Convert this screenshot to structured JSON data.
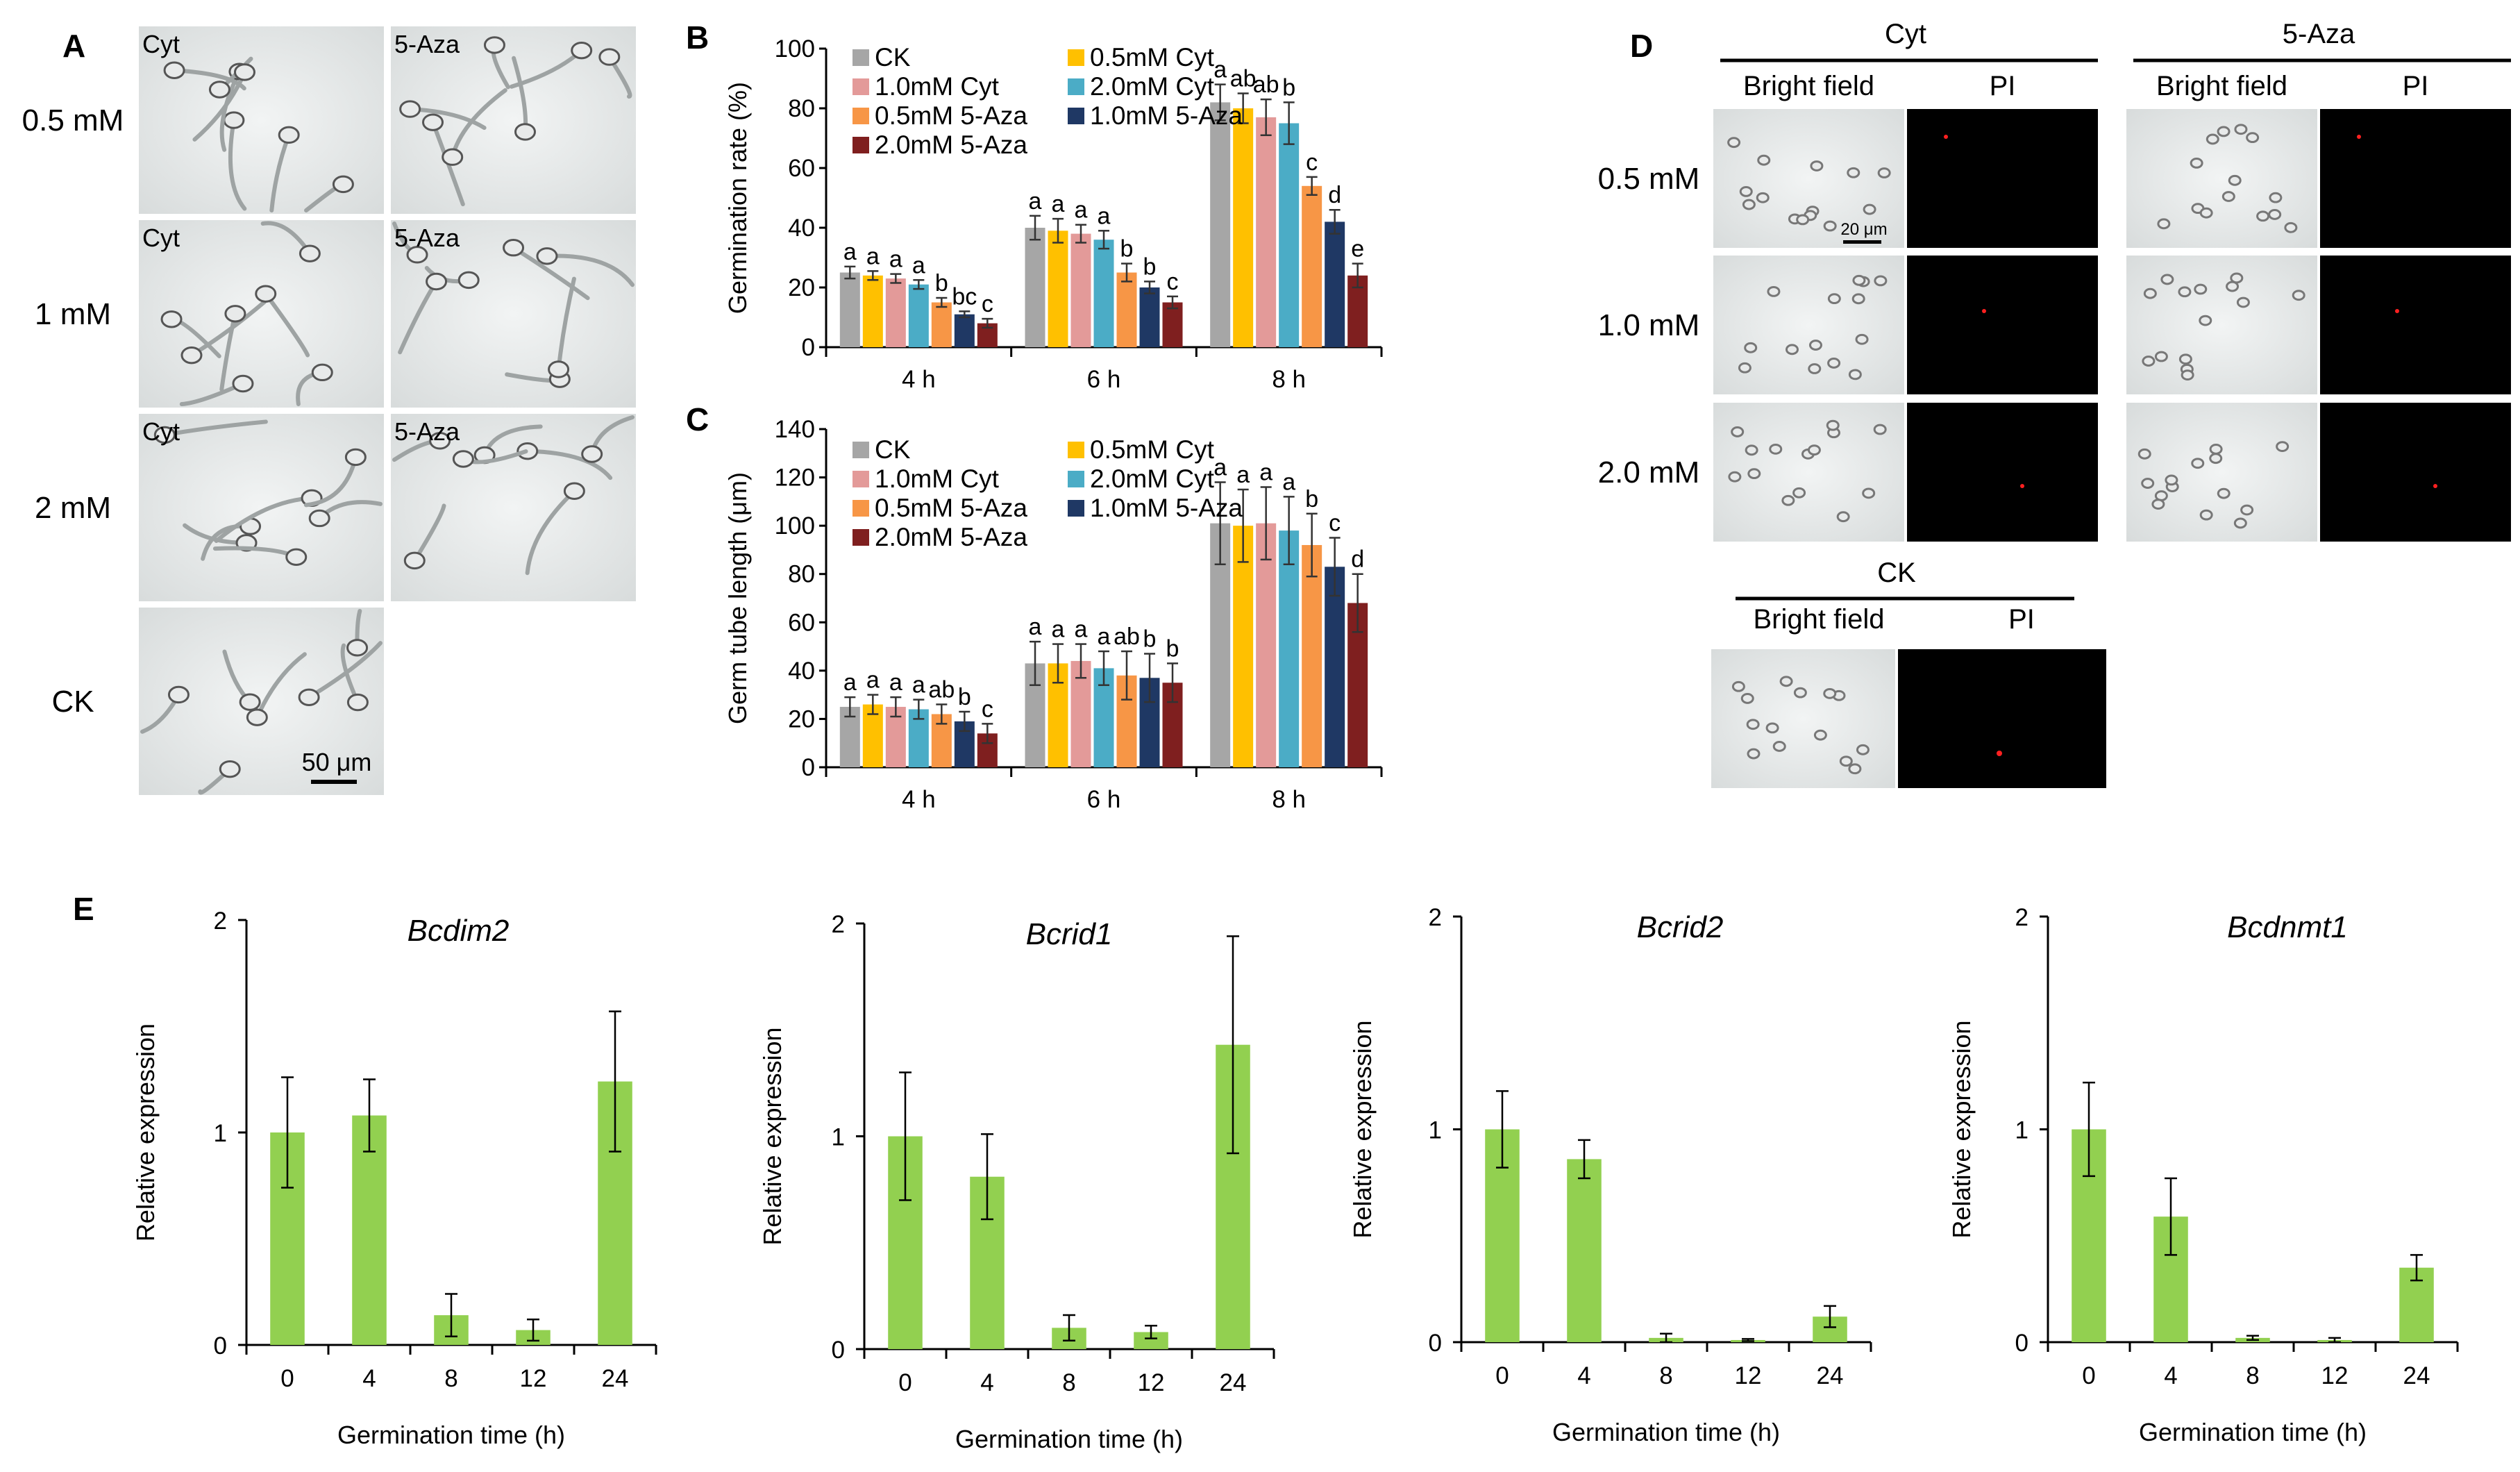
{
  "panels": {
    "A": {
      "letter": "A",
      "rows": [
        "0.5 mM",
        "1 mM",
        "2 mM",
        "CK"
      ],
      "tiles": [
        [
          "Cyt",
          "5-Aza"
        ],
        [
          "Cyt",
          "5-Aza"
        ],
        [
          "Cyt",
          "5-Aza"
        ]
      ],
      "scale_bar": "50 μm"
    },
    "D": {
      "letter": "D",
      "groups": [
        "Cyt",
        "5-Aza",
        "CK"
      ],
      "column_headers": [
        "Bright field",
        "PI"
      ],
      "rows": [
        "0.5 mM",
        "1.0 mM",
        "2.0 mM"
      ],
      "scale_bar": "20 μm"
    },
    "E": {
      "letter": "E"
    }
  },
  "colors": {
    "CK": "#a6a6a6",
    "0.5mM Cyt": "#ffc000",
    "1.0mM Cyt": "#e39a99",
    "2.0mM Cyt": "#4bacc6",
    "0.5mM 5-Aza": "#f79646",
    "1.0mM 5-Aza": "#1f3864",
    "2.0mM 5-Aza": "#7f1f1f",
    "expression": "#92d050"
  },
  "chart_data": [
    {
      "id": "B",
      "letter": "B",
      "type": "bar",
      "ylabel": "Germination rate (%)",
      "xlabel": "",
      "ylim": [
        0,
        100
      ],
      "yticks": [
        0,
        20,
        40,
        60,
        80,
        100
      ],
      "categories": [
        "4 h",
        "6 h",
        "8 h"
      ],
      "series": [
        {
          "name": "CK",
          "values": [
            25,
            40,
            82
          ],
          "errors": [
            2,
            4,
            6
          ],
          "letters": [
            "a",
            "a",
            "a"
          ]
        },
        {
          "name": "0.5mM Cyt",
          "values": [
            24,
            39,
            80
          ],
          "errors": [
            1.5,
            4,
            5
          ],
          "letters": [
            "a",
            "a",
            "ab"
          ]
        },
        {
          "name": "1.0mM Cyt",
          "values": [
            23,
            38,
            77
          ],
          "errors": [
            1.5,
            3,
            6
          ],
          "letters": [
            "a",
            "a",
            "ab"
          ]
        },
        {
          "name": "2.0mM Cyt",
          "values": [
            21,
            36,
            75
          ],
          "errors": [
            1.5,
            3,
            7
          ],
          "letters": [
            "a",
            "a",
            "b"
          ]
        },
        {
          "name": "0.5mM 5-Aza",
          "values": [
            15,
            25,
            54
          ],
          "errors": [
            1.5,
            3,
            3
          ],
          "letters": [
            "b",
            "b",
            "c"
          ]
        },
        {
          "name": "1.0mM 5-Aza",
          "values": [
            11,
            20,
            42
          ],
          "errors": [
            1,
            2,
            4
          ],
          "letters": [
            "bc",
            "b",
            "d"
          ]
        },
        {
          "name": "2.0mM 5-Aza",
          "values": [
            8,
            15,
            24
          ],
          "errors": [
            1.5,
            2,
            4
          ],
          "letters": [
            "c",
            "c",
            "e"
          ]
        }
      ]
    },
    {
      "id": "C",
      "letter": "C",
      "type": "bar",
      "ylabel": "Germ tube length (μm)",
      "xlabel": "",
      "ylim": [
        0,
        140
      ],
      "yticks": [
        0,
        20,
        40,
        60,
        80,
        100,
        120,
        140
      ],
      "categories": [
        "4 h",
        "6 h",
        "8 h"
      ],
      "series": [
        {
          "name": "CK",
          "values": [
            25,
            43,
            101
          ],
          "errors": [
            4,
            9,
            17
          ],
          "letters": [
            "a",
            "a",
            "a"
          ]
        },
        {
          "name": "0.5mM Cyt",
          "values": [
            26,
            43,
            100
          ],
          "errors": [
            4,
            8,
            15
          ],
          "letters": [
            "a",
            "a",
            "a"
          ]
        },
        {
          "name": "1.0mM Cyt",
          "values": [
            25,
            44,
            101
          ],
          "errors": [
            4,
            7,
            15
          ],
          "letters": [
            "a",
            "a",
            "a"
          ]
        },
        {
          "name": "2.0mM Cyt",
          "values": [
            24,
            41,
            98
          ],
          "errors": [
            4,
            7,
            14
          ],
          "letters": [
            "a",
            "a",
            "a"
          ]
        },
        {
          "name": "0.5mM 5-Aza",
          "values": [
            22,
            38,
            92
          ],
          "errors": [
            4,
            10,
            13
          ],
          "letters": [
            "ab",
            "ab",
            "b"
          ]
        },
        {
          "name": "1.0mM 5-Aza",
          "values": [
            19,
            37,
            83
          ],
          "errors": [
            4,
            10,
            12
          ],
          "letters": [
            "b",
            "b",
            "c"
          ]
        },
        {
          "name": "2.0mM 5-Aza",
          "values": [
            14,
            35,
            68
          ],
          "errors": [
            4,
            8,
            12
          ],
          "letters": [
            "c",
            "b",
            "d"
          ]
        }
      ]
    },
    {
      "id": "E1",
      "type": "bar",
      "title": "Bcdim2",
      "xlabel": "Germination time (h)",
      "ylabel": "Relative expression",
      "ylim": [
        0,
        2
      ],
      "yticks": [
        0,
        1,
        2
      ],
      "categories": [
        "0",
        "4",
        "8",
        "12",
        "24"
      ],
      "values": [
        1.0,
        1.08,
        0.14,
        0.07,
        1.24
      ],
      "errors": [
        0.26,
        0.17,
        0.1,
        0.05,
        0.33
      ]
    },
    {
      "id": "E2",
      "type": "bar",
      "title": "Bcrid1",
      "xlabel": "Germination time (h)",
      "ylabel": "Relative expression",
      "ylim": [
        0,
        2
      ],
      "yticks": [
        0,
        1,
        2
      ],
      "categories": [
        "0",
        "4",
        "8",
        "12",
        "24"
      ],
      "values": [
        1.0,
        0.81,
        0.1,
        0.08,
        1.43
      ],
      "errors": [
        0.3,
        0.2,
        0.06,
        0.03,
        0.51
      ]
    },
    {
      "id": "E3",
      "type": "bar",
      "title": "Bcrid2",
      "xlabel": "Germination time (h)",
      "ylabel": "Relative expression",
      "ylim": [
        0,
        2
      ],
      "yticks": [
        0,
        1,
        2
      ],
      "categories": [
        "0",
        "4",
        "8",
        "12",
        "24"
      ],
      "values": [
        1.0,
        0.86,
        0.02,
        0.01,
        0.12
      ],
      "errors": [
        0.18,
        0.09,
        0.02,
        0.005,
        0.05
      ]
    },
    {
      "id": "E4",
      "type": "bar",
      "title": "Bcdnmt1",
      "xlabel": "Germination time (h)",
      "ylabel": "Relative expression",
      "ylim": [
        0,
        2
      ],
      "yticks": [
        0,
        1,
        2
      ],
      "categories": [
        "0",
        "4",
        "8",
        "12",
        "24"
      ],
      "values": [
        1.0,
        0.59,
        0.02,
        0.01,
        0.35
      ],
      "errors": [
        0.22,
        0.18,
        0.01,
        0.01,
        0.06
      ]
    }
  ]
}
